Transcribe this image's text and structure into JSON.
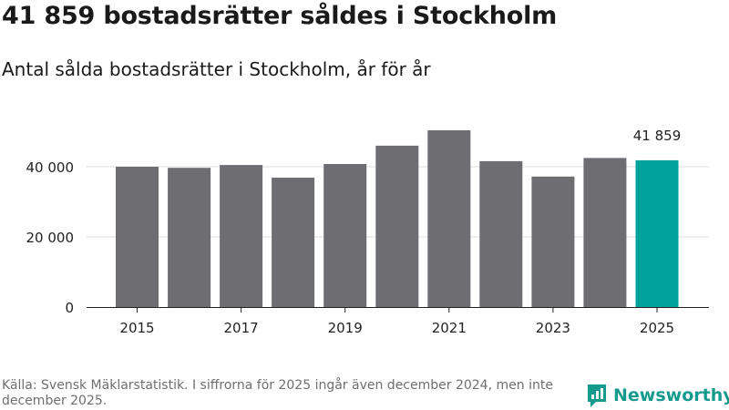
{
  "header": {
    "title": "41 859 bostadsrätter såldes i Stockholm",
    "subtitle": "Antal sålda bostadsrätter i Stockholm, år för år"
  },
  "chart_data": {
    "type": "bar",
    "title": "41 859 bostadsrätter såldes i Stockholm",
    "subtitle": "Antal sålda bostadsrätter i Stockholm, år för år",
    "xlabel": "",
    "ylabel": "",
    "categories": [
      "2015",
      "2016",
      "2017",
      "2018",
      "2019",
      "2020",
      "2021",
      "2022",
      "2023",
      "2024",
      "2025"
    ],
    "values": [
      40000,
      39700,
      40500,
      36900,
      40800,
      46000,
      50400,
      41600,
      37200,
      42500,
      41859
    ],
    "x_tick_labels": [
      "2015",
      "2017",
      "2019",
      "2021",
      "2023",
      "2025"
    ],
    "y_ticks": [
      0,
      20000,
      40000
    ],
    "y_tick_labels": [
      "0",
      "20 000",
      "40 000"
    ],
    "ylim": [
      0,
      50400
    ],
    "grid": true,
    "highlight_index": 10,
    "highlight_label": "41 859",
    "bar_color": "#6e6d72",
    "highlight_color": "#00a39b",
    "grid_color": "#dddddd"
  },
  "footer": {
    "source": "Källa: Svensk Mäklarstatistik. I siffrorna för 2025 ingår även december 2024, men inte december 2025."
  },
  "brand": {
    "name": "Newsworthy",
    "icon": "bar-chart-speech-bubble-icon",
    "color": "#159b8e"
  }
}
